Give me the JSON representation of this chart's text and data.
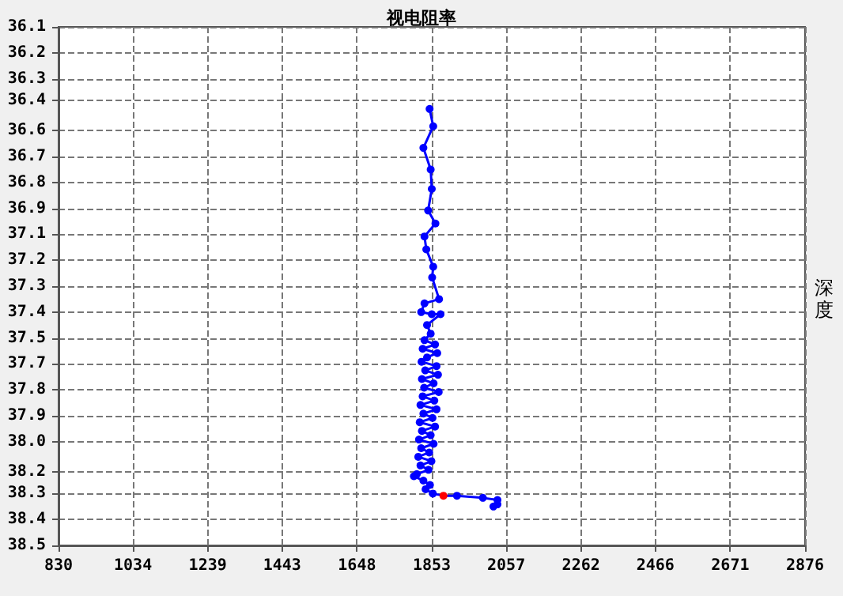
{
  "chart_data": {
    "type": "line",
    "title": "视电阻率",
    "ylabel": "深度",
    "xlim": [
      830,
      2876
    ],
    "xticks": [
      830,
      1034,
      1239,
      1443,
      1648,
      1853,
      2057,
      2262,
      2466,
      2671,
      2876
    ],
    "ylim": [
      38.5,
      36.1
    ],
    "yticks": [
      {
        "value": 36.1,
        "label": "36.1"
      },
      {
        "value": 36.22,
        "label": "36.2"
      },
      {
        "value": 36.34,
        "label": "36.3"
      },
      {
        "value": 36.44,
        "label": "36.4"
      },
      {
        "value": 36.58,
        "label": "36.6"
      },
      {
        "value": 36.7,
        "label": "36.7"
      },
      {
        "value": 36.82,
        "label": "36.8"
      },
      {
        "value": 36.94,
        "label": "36.9"
      },
      {
        "value": 37.06,
        "label": "37.1"
      },
      {
        "value": 37.18,
        "label": "37.2"
      },
      {
        "value": 37.3,
        "label": "37.3"
      },
      {
        "value": 37.42,
        "label": "37.4"
      },
      {
        "value": 37.54,
        "label": "37.5"
      },
      {
        "value": 37.66,
        "label": "37.7"
      },
      {
        "value": 37.78,
        "label": "37.8"
      },
      {
        "value": 37.9,
        "label": "37.9"
      },
      {
        "value": 38.02,
        "label": "38.0"
      },
      {
        "value": 38.16,
        "label": "38.2"
      },
      {
        "value": 38.26,
        "label": "38.3"
      },
      {
        "value": 38.38,
        "label": "38.4"
      },
      {
        "value": 38.5,
        "label": "38.5"
      }
    ],
    "grid": true,
    "marker": "circle",
    "line_style": "solid",
    "series": [
      {
        "color": "#0000ff",
        "x": [
          1847,
          1857,
          1830,
          1850,
          1853,
          1843,
          1863,
          1833,
          1838,
          1857,
          1854,
          1873,
          1833,
          1824,
          1853,
          1877,
          1840,
          1850,
          1833,
          1862,
          1828,
          1868,
          1840,
          1825,
          1866,
          1835,
          1870,
          1826,
          1858,
          1832,
          1872,
          1828,
          1860,
          1822,
          1866,
          1830,
          1855,
          1820,
          1862,
          1826,
          1850,
          1818,
          1858,
          1824,
          1846,
          1816,
          1852,
          1822,
          1844,
          1812,
          1804,
          1830,
          1848,
          1836,
          1856,
          1885,
          1922,
          1993,
          2033,
          2022,
          2033
        ],
        "values": [
          36.48,
          36.56,
          36.66,
          36.76,
          36.85,
          36.95,
          37.01,
          37.07,
          37.13,
          37.21,
          37.26,
          37.36,
          37.38,
          37.42,
          37.43,
          37.43,
          37.48,
          37.52,
          37.55,
          37.57,
          37.59,
          37.61,
          37.63,
          37.65,
          37.67,
          37.69,
          37.71,
          37.73,
          37.75,
          37.77,
          37.79,
          37.81,
          37.83,
          37.85,
          37.87,
          37.89,
          37.91,
          37.93,
          37.95,
          37.97,
          37.99,
          38.01,
          38.03,
          38.05,
          38.07,
          38.09,
          38.11,
          38.13,
          38.15,
          38.17,
          38.18,
          38.2,
          38.22,
          38.24,
          38.26,
          38.27,
          38.27,
          38.28,
          38.29,
          38.32,
          38.31
        ],
        "colors": [
          "#0000ff",
          "#0000ff",
          "#0000ff",
          "#0000ff",
          "#0000ff",
          "#0000ff",
          "#0000ff",
          "#0000ff",
          "#0000ff",
          "#0000ff",
          "#0000ff",
          "#0000ff",
          "#0000ff",
          "#0000ff",
          "#0000ff",
          "#0000ff",
          "#0000ff",
          "#0000ff",
          "#0000ff",
          "#0000ff",
          "#0000ff",
          "#0000ff",
          "#0000ff",
          "#0000ff",
          "#0000ff",
          "#0000ff",
          "#0000ff",
          "#0000ff",
          "#0000ff",
          "#0000ff",
          "#0000ff",
          "#0000ff",
          "#0000ff",
          "#0000ff",
          "#0000ff",
          "#0000ff",
          "#0000ff",
          "#0000ff",
          "#0000ff",
          "#0000ff",
          "#0000ff",
          "#0000ff",
          "#0000ff",
          "#0000ff",
          "#0000ff",
          "#0000ff",
          "#0000ff",
          "#0000ff",
          "#0000ff",
          "#0000ff",
          "#0000ff",
          "#0000ff",
          "#0000ff",
          "#0000ff",
          "#0000ff",
          "#ff0000",
          "#0000ff",
          "#0000ff",
          "#0000ff",
          "#0000ff",
          "#0000ff"
        ]
      }
    ]
  }
}
